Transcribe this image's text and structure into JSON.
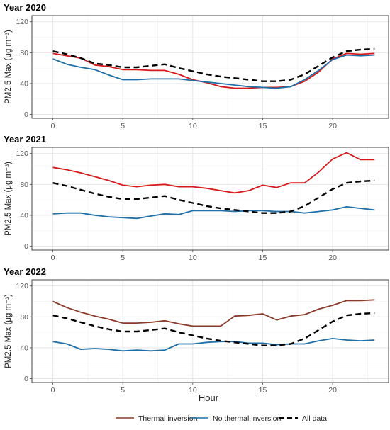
{
  "figure": {
    "xlabel": "Hour",
    "legend": {
      "placement": "bottom",
      "items": [
        {
          "label": "Thermal inversion",
          "color": "#8b3a2a",
          "style": "solid"
        },
        {
          "label": "No thermal inversion",
          "color": "#1f6fa8",
          "style": "solid"
        },
        {
          "label": "All data",
          "color": "#000000",
          "style": "dashed"
        }
      ]
    }
  },
  "chart_data": [
    {
      "type": "line",
      "title": "Year 2020",
      "ylabel": "PM2.5 Max (μg m⁻³)",
      "xlim": [
        -1.5,
        24
      ],
      "ylim": [
        -5,
        128
      ],
      "xticks": [
        0,
        5,
        10,
        15,
        20
      ],
      "yticks": [
        0,
        40,
        80,
        120
      ],
      "grid": true,
      "x": [
        0,
        1,
        2,
        3,
        4,
        5,
        6,
        7,
        8,
        9,
        10,
        11,
        12,
        13,
        14,
        15,
        16,
        17,
        18,
        19,
        20,
        21,
        22,
        23
      ],
      "series": [
        {
          "name": "Thermal inversion",
          "color": "#d7191c",
          "dash": false,
          "values": [
            79,
            76,
            73,
            64,
            62,
            58,
            58,
            57,
            57,
            52,
            45,
            41,
            36,
            34,
            34,
            35,
            35,
            36,
            43,
            55,
            72,
            79,
            78,
            79
          ]
        },
        {
          "name": "No thermal inversion",
          "color": "#1f6fa8",
          "dash": false,
          "values": [
            72,
            65,
            61,
            58,
            51,
            45,
            45,
            46,
            46,
            46,
            44,
            42,
            40,
            38,
            36,
            35,
            34,
            36,
            45,
            57,
            71,
            77,
            76,
            77
          ]
        },
        {
          "name": "All data",
          "color": "#000000",
          "dash": true,
          "values": [
            82,
            78,
            73,
            66,
            64,
            61,
            61,
            63,
            65,
            60,
            56,
            52,
            49,
            47,
            45,
            43,
            43,
            45,
            52,
            63,
            74,
            82,
            84,
            85
          ]
        }
      ]
    },
    {
      "type": "line",
      "title": "Year 2021",
      "ylabel": "PM2.5 Max (μg m⁻³)",
      "xlim": [
        -1.5,
        24
      ],
      "ylim": [
        -5,
        128
      ],
      "xticks": [
        0,
        5,
        10,
        15,
        20
      ],
      "yticks": [
        0,
        40,
        80,
        120
      ],
      "grid": true,
      "x": [
        0,
        1,
        2,
        3,
        4,
        5,
        6,
        7,
        8,
        9,
        10,
        11,
        12,
        13,
        14,
        15,
        16,
        17,
        18,
        19,
        20,
        21,
        22,
        23
      ],
      "series": [
        {
          "name": "Thermal inversion",
          "color": "#d7191c",
          "dash": false,
          "values": [
            102,
            99,
            95,
            90,
            85,
            79,
            77,
            79,
            80,
            77,
            77,
            75,
            72,
            69,
            72,
            79,
            76,
            82,
            82,
            96,
            113,
            121,
            112,
            112
          ]
        },
        {
          "name": "No thermal inversion",
          "color": "#1f6fa8",
          "dash": false,
          "values": [
            42,
            43,
            43,
            40,
            38,
            37,
            36,
            39,
            42,
            41,
            46,
            46,
            46,
            45,
            46,
            46,
            45,
            45,
            43,
            45,
            47,
            51,
            49,
            47
          ]
        },
        {
          "name": "All data",
          "color": "#000000",
          "dash": true,
          "values": [
            82,
            78,
            73,
            68,
            64,
            61,
            61,
            63,
            65,
            60,
            56,
            52,
            49,
            47,
            45,
            43,
            43,
            45,
            52,
            63,
            74,
            82,
            84,
            85
          ]
        }
      ]
    },
    {
      "type": "line",
      "title": "Year 2022",
      "ylabel": "PM2.5 Max (μg m⁻³)",
      "xlim": [
        -1.5,
        24
      ],
      "ylim": [
        -5,
        128
      ],
      "xticks": [
        0,
        5,
        10,
        15,
        20
      ],
      "yticks": [
        0,
        40,
        80,
        120
      ],
      "grid": true,
      "x": [
        0,
        1,
        2,
        3,
        4,
        5,
        6,
        7,
        8,
        9,
        10,
        11,
        12,
        13,
        14,
        15,
        16,
        17,
        18,
        19,
        20,
        21,
        22,
        23
      ],
      "series": [
        {
          "name": "Thermal inversion",
          "color": "#8b3a2a",
          "dash": false,
          "values": [
            100,
            92,
            86,
            81,
            77,
            72,
            72,
            73,
            75,
            71,
            68,
            68,
            68,
            81,
            82,
            84,
            76,
            81,
            83,
            90,
            95,
            101,
            101,
            102
          ]
        },
        {
          "name": "No thermal inversion",
          "color": "#1f6fa8",
          "dash": false,
          "values": [
            48,
            45,
            38,
            39,
            38,
            36,
            37,
            36,
            37,
            45,
            45,
            47,
            48,
            48,
            46,
            46,
            44,
            45,
            45,
            49,
            52,
            50,
            49,
            50
          ]
        },
        {
          "name": "All data",
          "color": "#000000",
          "dash": true,
          "values": [
            82,
            78,
            73,
            68,
            64,
            61,
            61,
            63,
            65,
            60,
            56,
            52,
            49,
            47,
            45,
            43,
            43,
            45,
            52,
            63,
            74,
            82,
            84,
            85
          ]
        }
      ]
    }
  ]
}
